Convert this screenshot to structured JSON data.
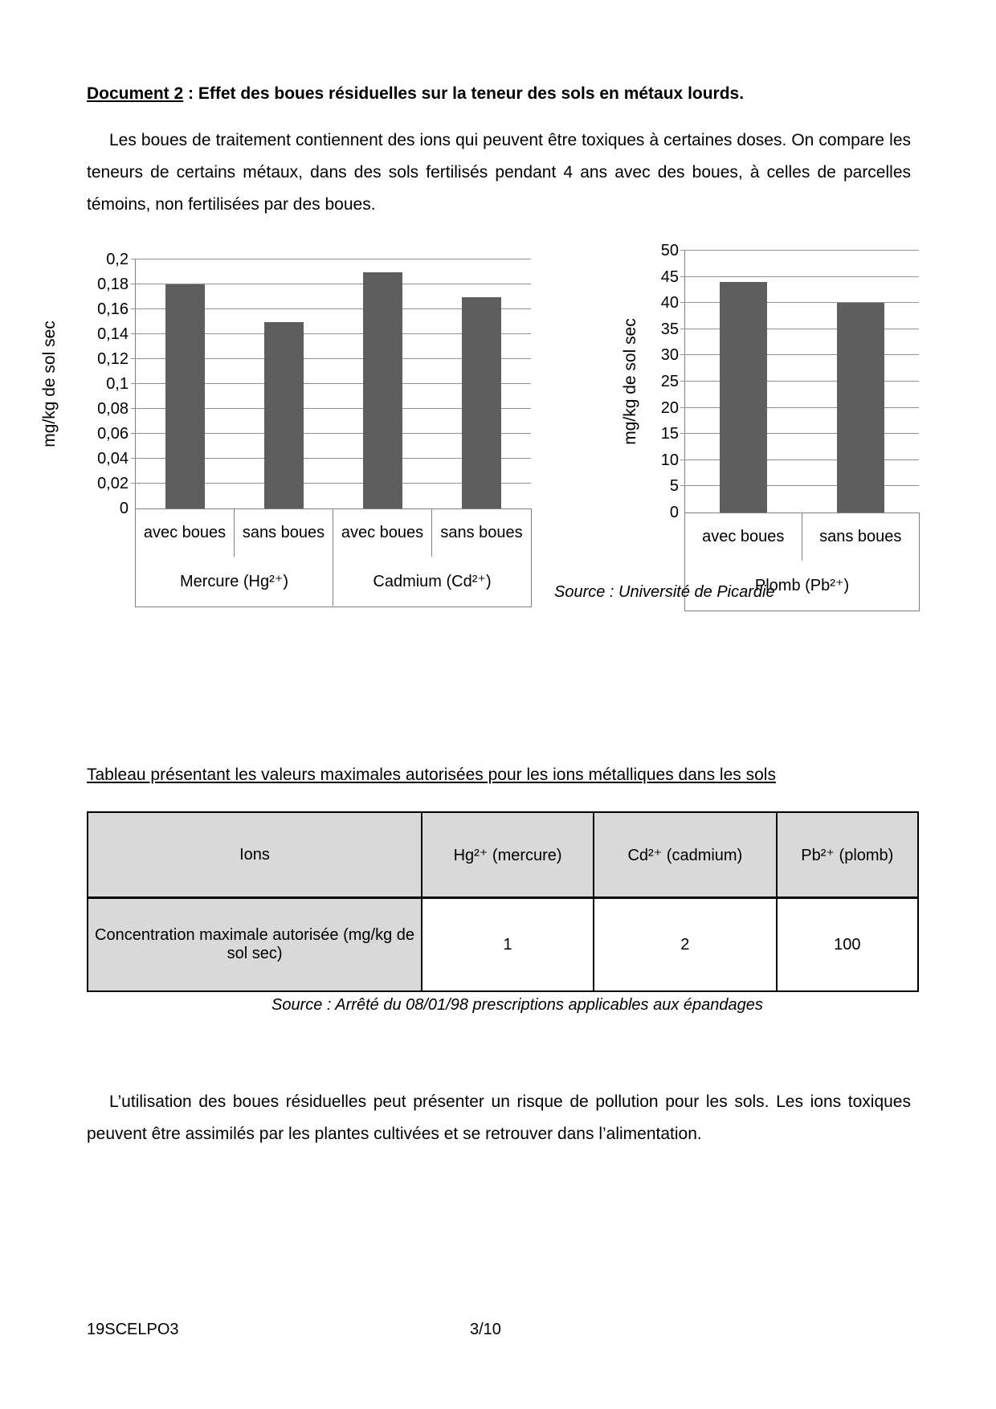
{
  "page": {
    "title_label": "Document 2",
    "title_rest": " : Effet des boues résiduelles sur la teneur des sols en métaux lourds.",
    "paragraph1": "Les boues de traitement contiennent des ions qui peuvent être toxiques à certaines doses. On compare les teneurs de certains métaux, dans des sols fertilisés pendant 4 ans avec des boues, à celles de parcelles témoins, non fertilisées par des boues.",
    "source_charts": "Source : Université de Picardie",
    "table_heading": "Tableau présentant les valeurs maximales autorisées pour les ions métalliques dans les sols",
    "source_table": "Source : Arrêté du 08/01/98 prescriptions applicables aux épandages",
    "paragraph2": "L’utilisation des boues résiduelles peut présenter un risque de pollution pour les sols. Les ions toxiques peuvent être assimilés par les plantes cultivées et se retrouver dans l’alimentation.",
    "footer_left": "19SCELPO3",
    "footer_page": "3/10"
  },
  "chart_data": [
    {
      "type": "bar",
      "title": "",
      "xlabel": "",
      "ylabel": "mg/kg de sol sec",
      "ylim": [
        0,
        0.2
      ],
      "ytick_step": 0.02,
      "ytick_labels": [
        "0",
        "0,02",
        "0,04",
        "0,06",
        "0,08",
        "0,1",
        "0,12",
        "0,14",
        "0,16",
        "0,18",
        "0,2"
      ],
      "categories": [
        "avec boues",
        "sans boues",
        "avec boues",
        "sans boues"
      ],
      "groups": [
        {
          "label": "Mercure (Hg²⁺)",
          "span": 2
        },
        {
          "label": "Cadmium (Cd²⁺)",
          "span": 2
        }
      ],
      "values": [
        0.18,
        0.15,
        0.19,
        0.17
      ],
      "bar_color": "#5e5e5e",
      "grid": true,
      "legend": "none"
    },
    {
      "type": "bar",
      "title": "",
      "xlabel": "",
      "ylabel": "mg/kg de sol sec",
      "ylim": [
        0,
        50
      ],
      "ytick_step": 5,
      "ytick_labels": [
        "0",
        "5",
        "10",
        "15",
        "20",
        "25",
        "30",
        "35",
        "40",
        "45",
        "50"
      ],
      "categories": [
        "avec boues",
        "sans boues"
      ],
      "groups": [
        {
          "label": "Plomb (Pb²⁺)",
          "span": 2
        }
      ],
      "values": [
        44,
        40
      ],
      "bar_color": "#5e5e5e",
      "grid": true,
      "legend": "none"
    }
  ],
  "table": {
    "headers": [
      "Ions",
      "Hg²⁺ (mercure)",
      "Cd²⁺ (cadmium)",
      "Pb²⁺ (plomb)"
    ],
    "row_label": "Concentration maximale autorisée (mg/kg de sol sec)",
    "values": [
      "1",
      "2",
      "100"
    ]
  },
  "colors": {
    "bar": "#5e5e5e",
    "gridline": "#909090",
    "axis": "#808080",
    "table_header_bg": "#d9d9d9"
  }
}
